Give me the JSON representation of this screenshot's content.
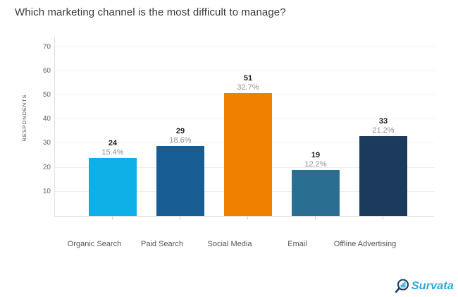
{
  "title": "Which marketing channel is the most difficult to manage?",
  "chart_data": {
    "type": "bar",
    "title": "Which marketing channel is the most difficult to manage?",
    "categories": [
      "Organic Search",
      "Paid Search",
      "Social Media",
      "Email",
      "Offline Advertising"
    ],
    "values": [
      24,
      29,
      51,
      19,
      33
    ],
    "percent_labels": [
      "15.4%",
      "18.6%",
      "32.7%",
      "12.2%",
      "21.2%"
    ],
    "bar_colors": [
      "#0fb0e8",
      "#175d93",
      "#f08100",
      "#2a6e92",
      "#1b3a5c"
    ],
    "xlabel": "",
    "ylabel": "RESPONDENTS",
    "y_ticks": [
      10,
      20,
      30,
      40,
      50,
      60,
      70
    ],
    "ylim": [
      0,
      74
    ],
    "grid": true,
    "legend": "none"
  },
  "branding": {
    "logo_text": "Survata",
    "logo_icon": "magnifier-bar-chart-icon",
    "logo_text_color": "#2aa7dd",
    "logo_ring_color": "#1b3a5c",
    "logo_bar_color": "#2aa7dd"
  }
}
